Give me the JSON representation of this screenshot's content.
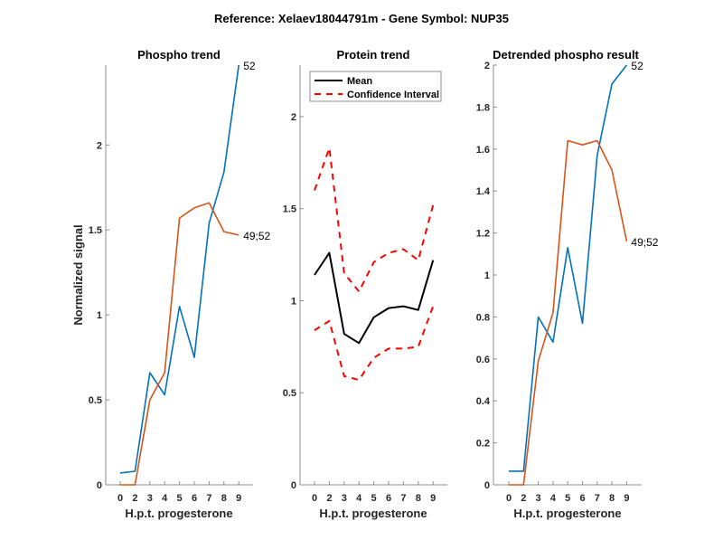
{
  "figure": {
    "suptitle": "Reference:  Xelaev18044791m - Gene Symbol:  NUP35"
  },
  "colors": {
    "blue": "#0072bd",
    "orange": "#d95319",
    "mean": "#000000",
    "ci": "#ff0000",
    "axis": "#8c8c8c"
  },
  "chart_data": [
    {
      "type": "line",
      "title": "Phospho trend",
      "xlabel": "H.p.t. progesterone",
      "ylabel": "Normalized signal",
      "x_tick_labels": [
        "0",
        "2",
        "3",
        "4",
        "5",
        "6",
        "7",
        "8",
        "9"
      ],
      "y_ticks": [
        0,
        0.5,
        1,
        1.5,
        2
      ],
      "y_tick_labels": [
        "0",
        "0.5",
        "1",
        "1.5",
        "2"
      ],
      "ylim": [
        0,
        2.47
      ],
      "xlim_index": [
        -1,
        9
      ],
      "series": [
        {
          "name": "52",
          "color_key": "blue",
          "values": [
            0.07,
            0.08,
            0.66,
            0.53,
            1.05,
            0.75,
            1.54,
            1.84,
            2.47
          ],
          "end_label": "52"
        },
        {
          "name": "49;52",
          "color_key": "orange",
          "values": [
            0.0,
            0.0,
            0.5,
            0.66,
            1.57,
            1.63,
            1.66,
            1.49,
            1.47
          ],
          "end_label": "49;52"
        }
      ]
    },
    {
      "type": "line",
      "title": "Protein trend",
      "xlabel": "H.p.t. progesterone",
      "ylabel": "",
      "x_tick_labels": [
        "0",
        "2",
        "3",
        "4",
        "5",
        "6",
        "7",
        "8",
        "9"
      ],
      "y_ticks": [
        0,
        0.5,
        1,
        1.5,
        2
      ],
      "y_tick_labels": [
        "0",
        "0.5",
        "1",
        "1.5",
        "2"
      ],
      "ylim": [
        0,
        2.28
      ],
      "xlim_index": [
        -1,
        9
      ],
      "legend": {
        "position": "top-left",
        "entries": [
          "Mean",
          "Confidence Interval"
        ]
      },
      "series": [
        {
          "name": "Mean",
          "color_key": "mean",
          "style": "solid",
          "values": [
            1.14,
            1.26,
            0.82,
            0.77,
            0.91,
            0.96,
            0.97,
            0.95,
            1.22
          ]
        },
        {
          "name": "Confidence Interval",
          "color_key": "ci",
          "style": "dashed",
          "values": [
            1.6,
            1.83,
            1.15,
            1.05,
            1.21,
            1.26,
            1.28,
            1.22,
            1.52
          ]
        },
        {
          "name": "Confidence Interval lower",
          "color_key": "ci",
          "style": "dashed",
          "values": [
            0.84,
            0.89,
            0.59,
            0.57,
            0.69,
            0.74,
            0.74,
            0.75,
            0.97
          ]
        }
      ]
    },
    {
      "type": "line",
      "title": "Detrended phospho result",
      "xlabel": "H.p.t. progesterone",
      "ylabel": "",
      "x_tick_labels": [
        "0",
        "2",
        "3",
        "4",
        "5",
        "6",
        "7",
        "8",
        "9"
      ],
      "y_ticks": [
        0,
        0.2,
        0.4,
        0.6,
        0.8,
        1,
        1.2,
        1.4,
        1.6,
        1.8,
        2
      ],
      "y_tick_labels": [
        "0",
        "0.2",
        "0.4",
        "0.6",
        "0.8",
        "1",
        "1.2",
        "1.4",
        "1.6",
        "1.8",
        "2"
      ],
      "ylim": [
        0,
        2.0
      ],
      "xlim_index": [
        -1,
        9
      ],
      "series": [
        {
          "name": "52",
          "color_key": "blue",
          "values": [
            0.065,
            0.065,
            0.8,
            0.68,
            1.13,
            0.77,
            1.57,
            1.91,
            2.0
          ],
          "end_label": "52"
        },
        {
          "name": "49;52",
          "color_key": "orange",
          "values": [
            0.0,
            0.0,
            0.59,
            0.82,
            1.64,
            1.62,
            1.64,
            1.5,
            1.16
          ],
          "end_label": "49;52"
        }
      ]
    }
  ]
}
